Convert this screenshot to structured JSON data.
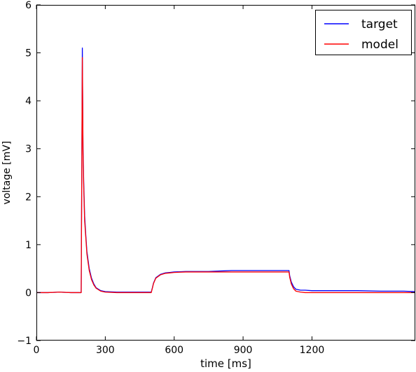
{
  "chart_data": {
    "type": "line",
    "title": "",
    "xlabel": "time [ms]",
    "ylabel": "voltage [mV]",
    "xlim": [
      0,
      1650
    ],
    "ylim": [
      -1,
      6
    ],
    "xticks": [
      0,
      300,
      600,
      900,
      1200
    ],
    "xtick_labels": [
      "0",
      "300",
      "600",
      "900",
      "1200"
    ],
    "yticks": [
      -1,
      0,
      1,
      2,
      3,
      4,
      5,
      6
    ],
    "ytick_labels": [
      "−1",
      "0",
      "1",
      "2",
      "3",
      "4",
      "5",
      "6"
    ],
    "grid": false,
    "legend_position": "top-right",
    "series": [
      {
        "name": "target",
        "color": "#0000ff",
        "x": [
          0,
          50,
          100,
          150,
          195,
          200,
          203,
          206,
          210,
          215,
          220,
          230,
          240,
          250,
          260,
          280,
          300,
          350,
          400,
          450,
          500,
          505,
          510,
          520,
          540,
          560,
          580,
          600,
          650,
          700,
          750,
          800,
          850,
          900,
          950,
          1000,
          1050,
          1100,
          1103,
          1110,
          1120,
          1130,
          1150,
          1170,
          1200,
          1300,
          1400,
          1500,
          1600,
          1650
        ],
        "y": [
          0.0,
          0.0,
          0.01,
          0.0,
          0.0,
          5.1,
          3.0,
          2.3,
          1.6,
          1.2,
          0.85,
          0.5,
          0.3,
          0.18,
          0.1,
          0.04,
          0.02,
          0.01,
          0.01,
          0.01,
          0.01,
          0.1,
          0.2,
          0.31,
          0.38,
          0.41,
          0.42,
          0.43,
          0.44,
          0.44,
          0.44,
          0.45,
          0.46,
          0.46,
          0.46,
          0.46,
          0.46,
          0.46,
          0.35,
          0.22,
          0.12,
          0.07,
          0.05,
          0.05,
          0.04,
          0.04,
          0.04,
          0.03,
          0.03,
          0.02
        ]
      },
      {
        "name": "model",
        "color": "#ff0000",
        "x": [
          0,
          50,
          100,
          150,
          195,
          200,
          203,
          206,
          210,
          215,
          220,
          230,
          240,
          250,
          260,
          280,
          300,
          350,
          400,
          450,
          500,
          505,
          510,
          520,
          540,
          560,
          580,
          600,
          650,
          700,
          750,
          800,
          850,
          900,
          950,
          1000,
          1050,
          1100,
          1103,
          1110,
          1120,
          1130,
          1150,
          1170,
          1200,
          1300,
          1400,
          1500,
          1600,
          1650
        ],
        "y": [
          0.0,
          0.0,
          0.01,
          0.0,
          0.0,
          4.9,
          2.9,
          2.2,
          1.5,
          1.15,
          0.8,
          0.46,
          0.27,
          0.16,
          0.09,
          0.03,
          0.01,
          0.0,
          0.0,
          0.0,
          0.0,
          0.09,
          0.19,
          0.3,
          0.37,
          0.4,
          0.41,
          0.42,
          0.43,
          0.43,
          0.43,
          0.43,
          0.43,
          0.43,
          0.43,
          0.43,
          0.43,
          0.43,
          0.32,
          0.18,
          0.08,
          0.03,
          0.01,
          0.0,
          0.0,
          0.0,
          0.0,
          0.0,
          0.0,
          0.0
        ]
      }
    ]
  }
}
